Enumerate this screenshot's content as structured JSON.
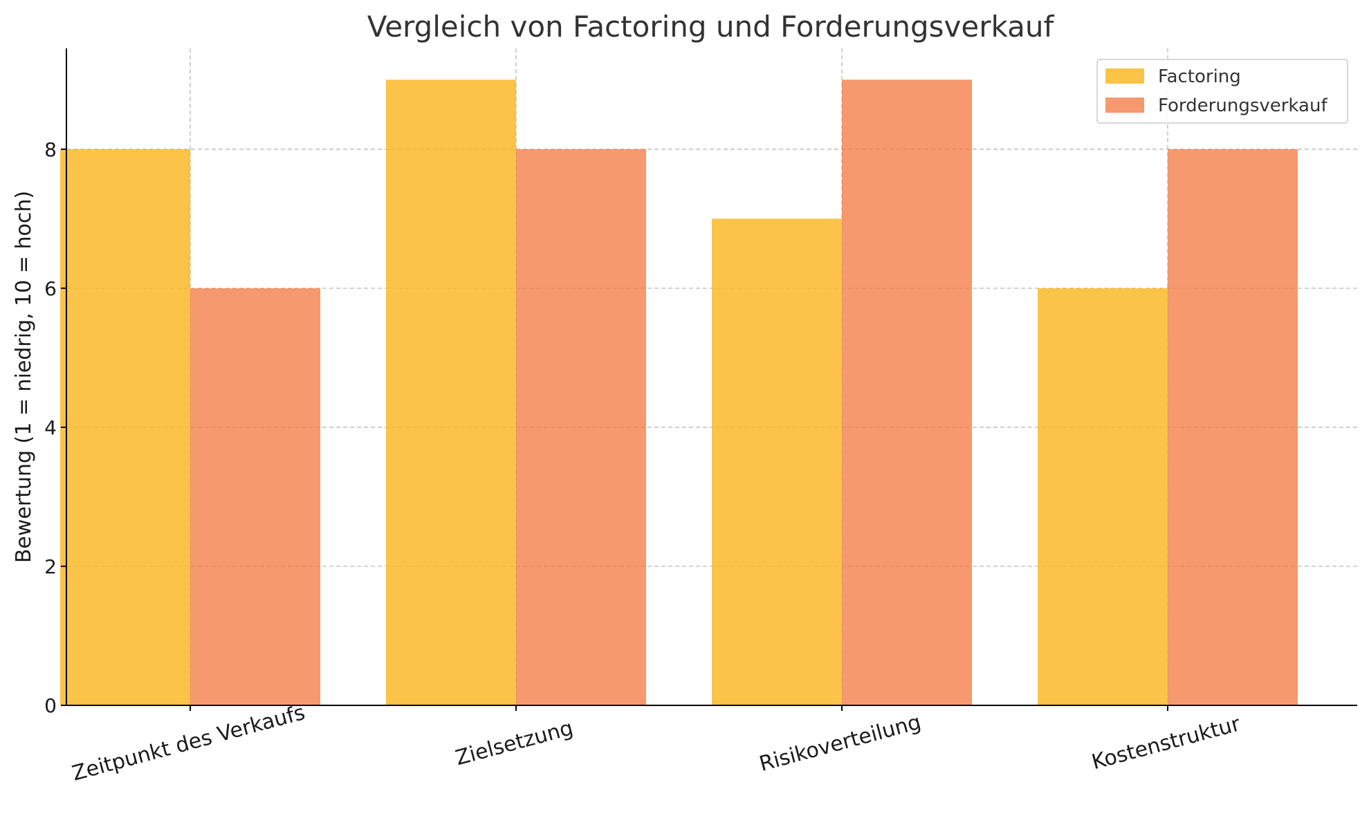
{
  "chart_data": {
    "type": "bar",
    "title": "Vergleich von Factoring und Forderungsverkauf",
    "xlabel": "",
    "ylabel": "Bewertung (1 = niedrig, 10 = hoch)",
    "categories": [
      "Zeitpunkt des Verkaufs",
      "Zielsetzung",
      "Risikoverteilung",
      "Kostenstruktur"
    ],
    "series": [
      {
        "name": "Factoring",
        "values": [
          8,
          9,
          7,
          6
        ],
        "color": "#fbb829"
      },
      {
        "name": "Forderungsverkauf",
        "values": [
          6,
          8,
          9,
          8
        ],
        "color": "#f4804a"
      }
    ],
    "ylim": [
      0,
      9.45
    ],
    "yticks": [
      "0",
      "2",
      "4",
      "6",
      "8"
    ],
    "grid": true,
    "legend_position": "top-right"
  }
}
